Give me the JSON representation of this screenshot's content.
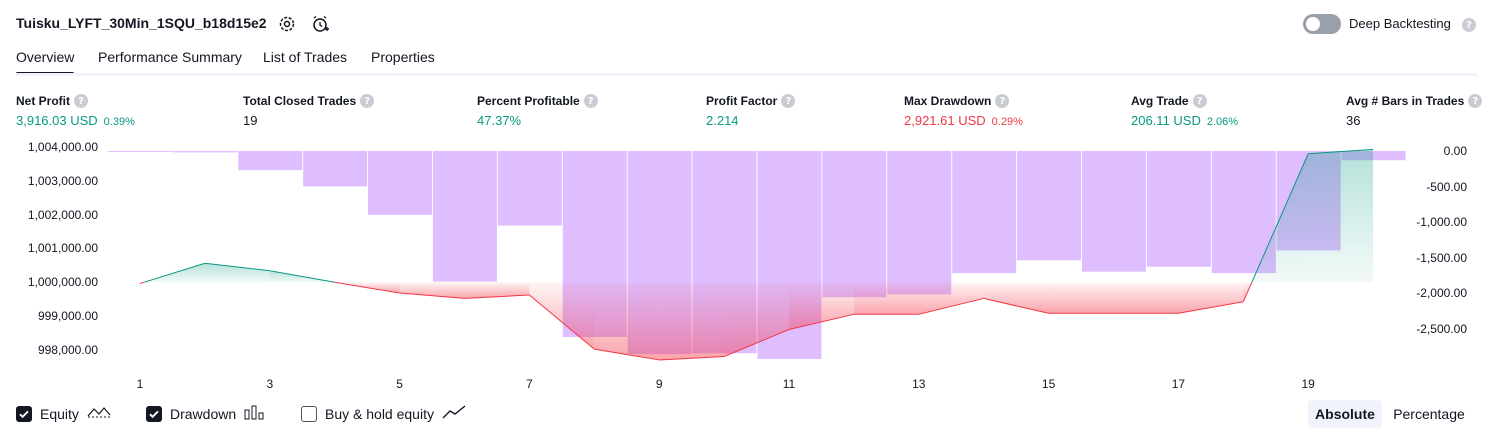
{
  "header": {
    "strategy_title": "Tuisku_LYFT_30Min_1SQU_b18d15e2",
    "settings_icon": "gear-icon",
    "alert_icon": "alarm-plus-icon",
    "deep_backtesting_label": "Deep Backtesting",
    "deep_backtesting_on": false,
    "help_glyph": "?"
  },
  "tabs": [
    {
      "label": "Overview",
      "active": true
    },
    {
      "label": "Performance Summary",
      "active": false
    },
    {
      "label": "List of Trades",
      "active": false
    },
    {
      "label": "Properties",
      "active": false
    }
  ],
  "metrics": [
    {
      "label": "Net Profit",
      "value": "3,916.03 USD",
      "pct": "0.39%",
      "color": "#089981"
    },
    {
      "label": "Total Closed Trades",
      "value": "19",
      "pct": "",
      "color": "#131722"
    },
    {
      "label": "Percent Profitable",
      "value": "47.37%",
      "pct": "",
      "color": "#089981"
    },
    {
      "label": "Profit Factor",
      "value": "2.214",
      "pct": "",
      "color": "#089981"
    },
    {
      "label": "Max Drawdown",
      "value": "2,921.61 USD",
      "pct": "0.29%",
      "color": "#f23645"
    },
    {
      "label": "Avg Trade",
      "value": "206.11 USD",
      "pct": "2.06%",
      "color": "#089981"
    },
    {
      "label": "Avg # Bars in Trades",
      "value": "36",
      "pct": "",
      "color": "#131722"
    }
  ],
  "chart_data": {
    "type": "line",
    "left_axis_ticks": [
      "1,004,000.00",
      "1,003,000.00",
      "1,002,000.00",
      "1,001,000.00",
      "1,000,000.00",
      "999,000.00",
      "998,000.00"
    ],
    "left_axis_values": [
      1004000,
      1003000,
      1002000,
      1001000,
      1000000,
      999000,
      998000
    ],
    "right_axis_ticks": [
      "0.00",
      "-500.00",
      "-1,000.00",
      "-1,500.00",
      "-2,000.00",
      "-2,500.00"
    ],
    "right_axis_values": [
      0,
      -500,
      -1000,
      -1500,
      -2000,
      -2500
    ],
    "x_ticks": [
      "1",
      "3",
      "5",
      "7",
      "9",
      "11",
      "13",
      "15",
      "17",
      "19"
    ],
    "trades": [
      1,
      2,
      3,
      4,
      5,
      6,
      7,
      8,
      9,
      10,
      11,
      12,
      13,
      14,
      15,
      16,
      17,
      18,
      19,
      20
    ],
    "equity": [
      999960,
      1000560,
      1000340,
      1000000,
      999680,
      999520,
      999620,
      998020,
      997700,
      997800,
      998600,
      999050,
      999050,
      999520,
      999080,
      999080,
      999080,
      999420,
      1003800,
      1003930
    ],
    "drawdown": [
      0,
      -20,
      -270,
      -500,
      -900,
      -1840,
      -1050,
      -2620,
      -2860,
      -2850,
      -2930,
      -2060,
      -2020,
      -1720,
      -1540,
      -1700,
      -1630,
      -1720,
      -1400,
      -130
    ],
    "buy_hold_equity": [],
    "baseline": 1000000,
    "colors": {
      "equity_up": "#089981",
      "equity_down": "#f23645",
      "drawdown_bar": "#d9b3ff"
    }
  },
  "legend": {
    "equity": {
      "label": "Equity",
      "checked": true,
      "icon": "equity-line-icon"
    },
    "drawdown": {
      "label": "Drawdown",
      "checked": true,
      "icon": "drawdown-bars-icon"
    },
    "buy_hold": {
      "label": "Buy & hold equity",
      "checked": false,
      "icon": "buy-hold-line-icon"
    }
  },
  "scale_toggle": {
    "absolute": "Absolute",
    "percentage": "Percentage",
    "selected": "Absolute"
  }
}
